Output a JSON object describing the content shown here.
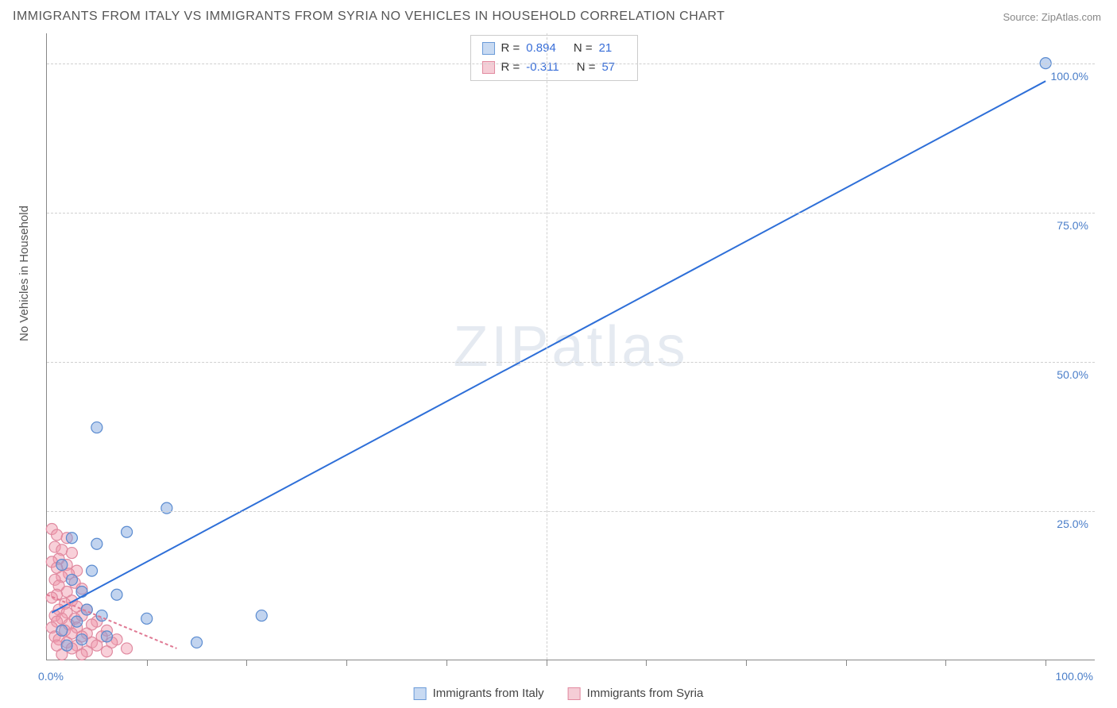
{
  "title": "IMMIGRANTS FROM ITALY VS IMMIGRANTS FROM SYRIA NO VEHICLES IN HOUSEHOLD CORRELATION CHART",
  "source": "Source: ZipAtlas.com",
  "ylabel": "No Vehicles in Household",
  "watermark": "ZIPatlas",
  "chart": {
    "type": "scatter",
    "xlim": [
      0,
      105
    ],
    "ylim": [
      0,
      105
    ],
    "background_color": "#ffffff",
    "grid_color": "#d0d0d0",
    "grid_dash": "4,4",
    "y_ticks": [
      25,
      50,
      75,
      100
    ],
    "y_tick_labels": [
      "25.0%",
      "50.0%",
      "75.0%",
      "100.0%"
    ],
    "x_tick_positions": [
      10,
      20,
      30,
      40,
      50,
      60,
      70,
      80,
      90,
      100
    ],
    "x_axis_0_label": "0.0%",
    "x_axis_100_label": "100.0%",
    "axis_label_color": "#4a7ec9",
    "axis_label_fontsize": 14,
    "marker_radius": 7,
    "marker_stroke_width": 1.2,
    "line_width": 2,
    "series": [
      {
        "name": "Immigrants from Italy",
        "fill_color": "rgba(120,160,220,0.45)",
        "stroke_color": "#5a8bd0",
        "swatch_fill": "#c8daf2",
        "swatch_border": "#6a9bd8",
        "R": "0.894",
        "N": "21",
        "points": [
          [
            100,
            100
          ],
          [
            5,
            39
          ],
          [
            12,
            25.5
          ],
          [
            8,
            21.5
          ],
          [
            2.5,
            20.5
          ],
          [
            5,
            19.5
          ],
          [
            1.5,
            16
          ],
          [
            4.5,
            15
          ],
          [
            2.5,
            13.5
          ],
          [
            7,
            11
          ],
          [
            3.5,
            11.5
          ],
          [
            4,
            8.5
          ],
          [
            5.5,
            7.5
          ],
          [
            3,
            6.5
          ],
          [
            10,
            7
          ],
          [
            1.5,
            5
          ],
          [
            21.5,
            7.5
          ],
          [
            15,
            3
          ],
          [
            2,
            2.5
          ],
          [
            3.5,
            3.5
          ],
          [
            6,
            4
          ]
        ],
        "trend": {
          "x1": 0.5,
          "y1": 8,
          "x2": 100,
          "y2": 97,
          "color": "#2e6fd8",
          "dash": "none"
        }
      },
      {
        "name": "Immigrants from Syria",
        "fill_color": "rgba(240,150,170,0.45)",
        "stroke_color": "#e08aa0",
        "swatch_fill": "#f5cdd6",
        "swatch_border": "#e28aa0",
        "R": "-0.311",
        "N": "57",
        "points": [
          [
            0.5,
            22
          ],
          [
            1,
            21
          ],
          [
            2,
            20.5
          ],
          [
            0.8,
            19
          ],
          [
            1.5,
            18.5
          ],
          [
            2.5,
            18
          ],
          [
            1.2,
            17
          ],
          [
            0.5,
            16.5
          ],
          [
            2,
            16
          ],
          [
            1,
            15.5
          ],
          [
            3,
            15
          ],
          [
            2.2,
            14.5
          ],
          [
            1.5,
            14
          ],
          [
            0.8,
            13.5
          ],
          [
            2.8,
            13
          ],
          [
            1.2,
            12.5
          ],
          [
            3.5,
            12
          ],
          [
            2,
            11.5
          ],
          [
            1,
            11
          ],
          [
            0.5,
            10.5
          ],
          [
            2.5,
            10
          ],
          [
            1.8,
            9.5
          ],
          [
            3,
            9
          ],
          [
            1.2,
            8.5
          ],
          [
            4,
            8.5
          ],
          [
            2,
            8
          ],
          [
            0.8,
            7.5
          ],
          [
            3.5,
            7.5
          ],
          [
            1.5,
            7
          ],
          [
            2.8,
            7
          ],
          [
            5,
            6.5
          ],
          [
            1,
            6.5
          ],
          [
            4.5,
            6
          ],
          [
            2.2,
            6
          ],
          [
            0.5,
            5.5
          ],
          [
            3,
            5.5
          ],
          [
            6,
            5
          ],
          [
            1.8,
            5
          ],
          [
            4,
            4.5
          ],
          [
            2.5,
            4.5
          ],
          [
            0.8,
            4
          ],
          [
            5.5,
            4
          ],
          [
            3.5,
            4
          ],
          [
            1.2,
            3.5
          ],
          [
            7,
            3.5
          ],
          [
            2,
            3
          ],
          [
            4.5,
            3
          ],
          [
            6.5,
            3
          ],
          [
            1,
            2.5
          ],
          [
            3,
            2.5
          ],
          [
            5,
            2.5
          ],
          [
            8,
            2
          ],
          [
            2.5,
            2
          ],
          [
            4,
            1.5
          ],
          [
            6,
            1.5
          ],
          [
            1.5,
            1
          ],
          [
            3.5,
            1
          ]
        ],
        "trend": {
          "x1": 0,
          "y1": 11,
          "x2": 13,
          "y2": 2,
          "color": "#e07a94",
          "dash": "4,3"
        }
      }
    ]
  },
  "legend": {
    "items": [
      {
        "label": "Immigrants from Italy",
        "fill": "#c8daf2",
        "border": "#6a9bd8"
      },
      {
        "label": "Immigrants from Syria",
        "fill": "#f5cdd6",
        "border": "#e28aa0"
      }
    ]
  }
}
